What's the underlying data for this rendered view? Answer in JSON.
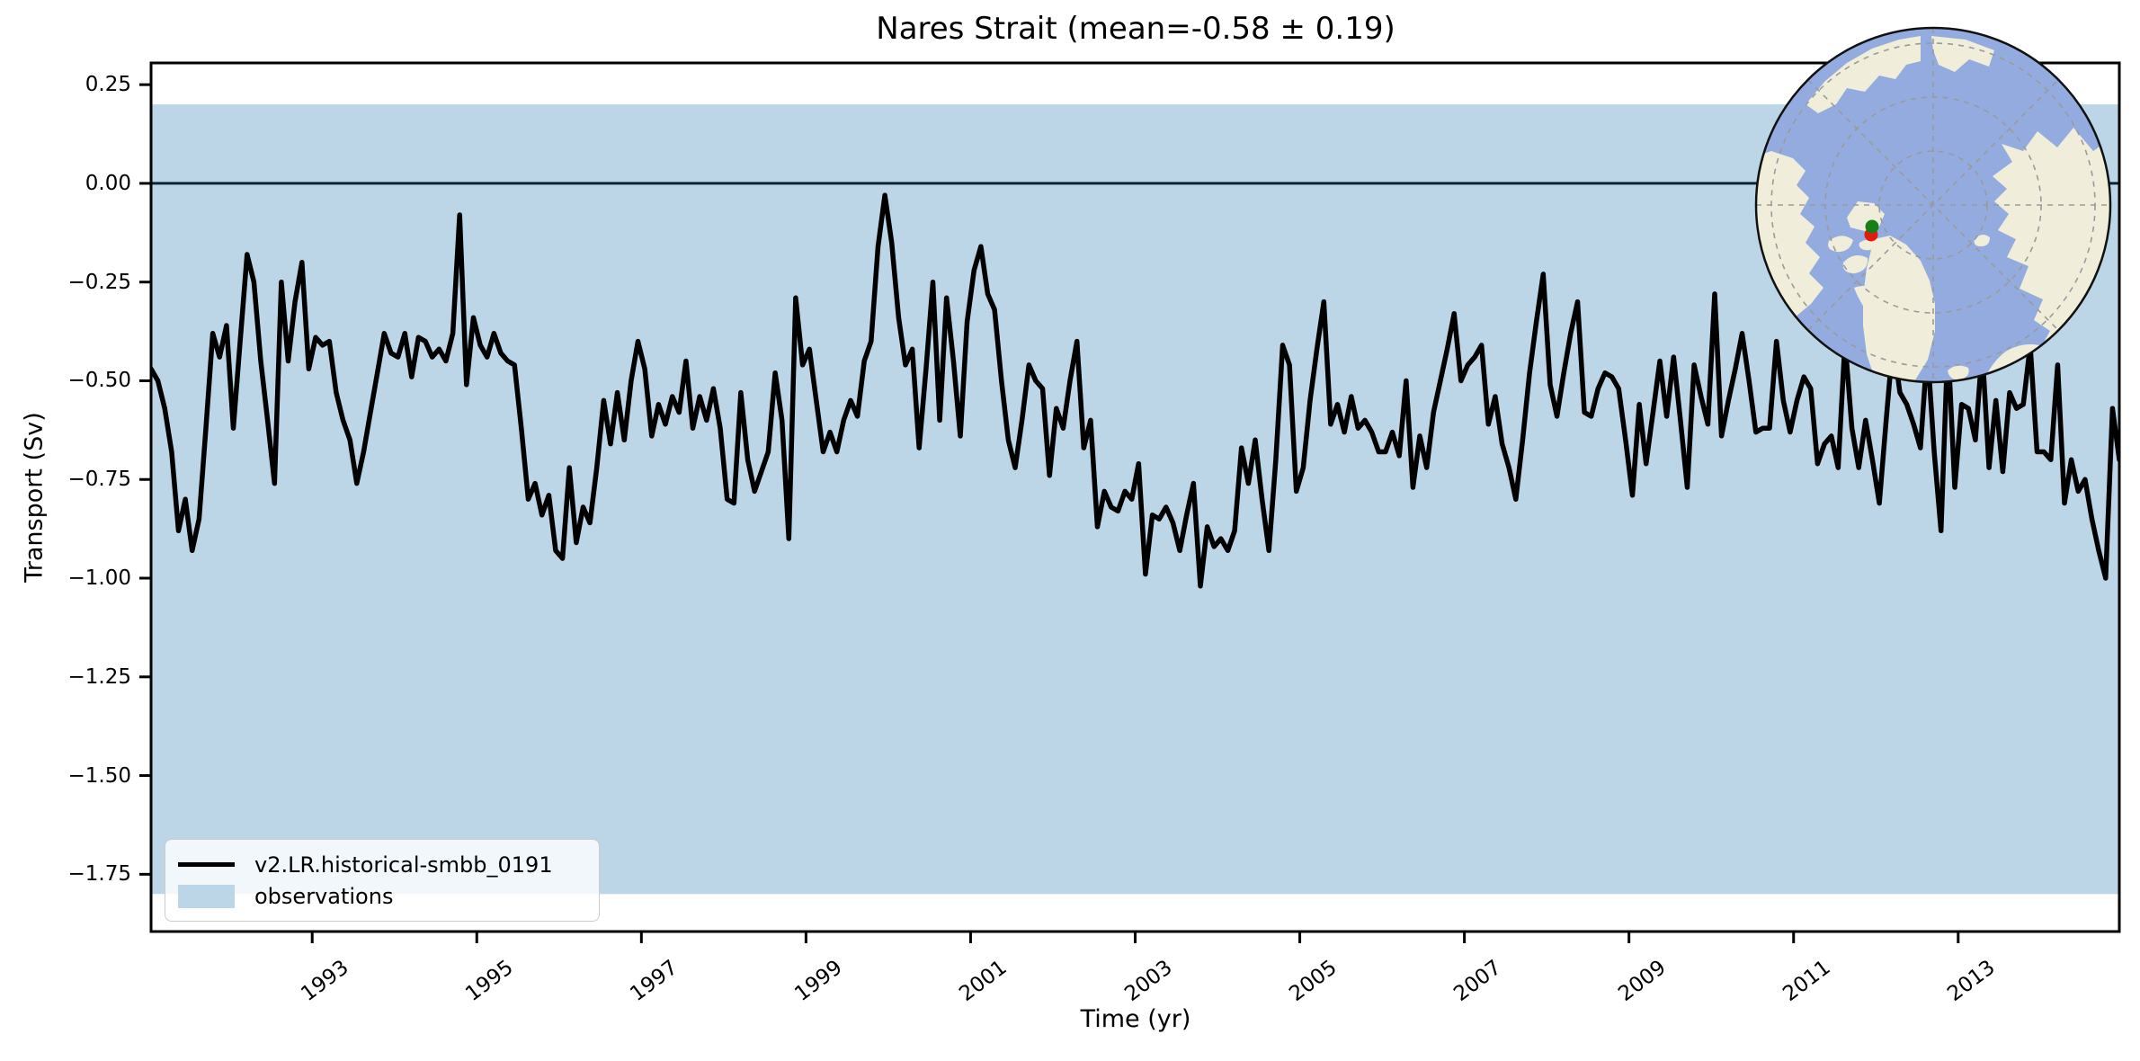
{
  "title": "Nares Strait (mean=-0.58 ± 0.19)",
  "stats": {
    "mean": -0.58,
    "std": 0.19
  },
  "axes": {
    "xlabel": "Time (yr)",
    "ylabel": "Transport (Sv)",
    "xticks": [
      {
        "value": 1993,
        "label": "1993"
      },
      {
        "value": 1995,
        "label": "1995"
      },
      {
        "value": 1997,
        "label": "1997"
      },
      {
        "value": 1999,
        "label": "1999"
      },
      {
        "value": 2001,
        "label": "2001"
      },
      {
        "value": 2003,
        "label": "2003"
      },
      {
        "value": 2005,
        "label": "2005"
      },
      {
        "value": 2007,
        "label": "2007"
      },
      {
        "value": 2009,
        "label": "2009"
      },
      {
        "value": 2011,
        "label": "2011"
      },
      {
        "value": 2013,
        "label": "2013"
      }
    ],
    "yticks": [
      {
        "value": 0.25,
        "label": "0.25"
      },
      {
        "value": 0.0,
        "label": "0.00"
      },
      {
        "value": -0.25,
        "label": "−0.25"
      },
      {
        "value": -0.5,
        "label": "−0.50"
      },
      {
        "value": -0.75,
        "label": "−0.75"
      },
      {
        "value": -1.0,
        "label": "−1.00"
      },
      {
        "value": -1.25,
        "label": "−1.25"
      },
      {
        "value": -1.5,
        "label": "−1.50"
      },
      {
        "value": -1.75,
        "label": "−1.75"
      }
    ]
  },
  "legend": {
    "entries": [
      {
        "label": "v2.LR.historical-smbb_0191",
        "swatch": "line"
      },
      {
        "label": "observations",
        "swatch": "patch"
      }
    ]
  },
  "colors": {
    "series_line": "#000000",
    "obs_band": "#bcd6e8",
    "zero_line": "#0d2233",
    "axes_frame": "#000000",
    "map_ocean": "#93abde",
    "map_land": "#f0eedb",
    "map_graticule": "#9a9a9a",
    "marker_red": "#e41a0c",
    "marker_green": "#168016"
  },
  "inset_map": {
    "projection": "north-polar-stereographic",
    "markers": [
      {
        "name": "strait-location-green",
        "color_key": "marker_green"
      },
      {
        "name": "strait-location-red",
        "color_key": "marker_red"
      }
    ]
  },
  "chart_data": {
    "type": "line",
    "title": "Nares Strait (mean=-0.58 ± 0.19)",
    "xlabel": "Time (yr)",
    "ylabel": "Transport (Sv)",
    "xlim": [
      1991.042,
      2014.958
    ],
    "ylim": [
      -1.895,
      0.305
    ],
    "grid": false,
    "zero_line": 0.0,
    "obs_band": {
      "low": -1.8,
      "high": 0.2,
      "label": "observations"
    },
    "xticks": [
      1993,
      1995,
      1997,
      1999,
      2001,
      2003,
      2005,
      2007,
      2009,
      2011,
      2013
    ],
    "yticks": [
      0.25,
      0.0,
      -0.25,
      -0.5,
      -0.75,
      -1.0,
      -1.25,
      -1.5,
      -1.75
    ],
    "legend_position": "lower left",
    "series": [
      {
        "name": "v2.LR.historical-smbb_0191",
        "color": "#000000",
        "cadence": "monthly",
        "x_start_year": 1991,
        "values": [
          -0.47,
          -0.5,
          -0.57,
          -0.68,
          -0.88,
          -0.8,
          -0.93,
          -0.85,
          -0.62,
          -0.38,
          -0.44,
          -0.36,
          -0.62,
          -0.4,
          -0.18,
          -0.25,
          -0.45,
          -0.6,
          -0.76,
          -0.25,
          -0.45,
          -0.3,
          -0.2,
          -0.47,
          -0.39,
          -0.41,
          -0.4,
          -0.53,
          -0.6,
          -0.65,
          -0.76,
          -0.68,
          -0.58,
          -0.48,
          -0.38,
          -0.43,
          -0.44,
          -0.38,
          -0.49,
          -0.39,
          -0.4,
          -0.44,
          -0.42,
          -0.45,
          -0.38,
          -0.08,
          -0.51,
          -0.34,
          -0.41,
          -0.44,
          -0.38,
          -0.43,
          -0.45,
          -0.46,
          -0.62,
          -0.8,
          -0.76,
          -0.84,
          -0.79,
          -0.93,
          -0.95,
          -0.72,
          -0.91,
          -0.82,
          -0.86,
          -0.72,
          -0.55,
          -0.66,
          -0.53,
          -0.65,
          -0.5,
          -0.4,
          -0.47,
          -0.64,
          -0.56,
          -0.61,
          -0.54,
          -0.58,
          -0.45,
          -0.62,
          -0.54,
          -0.6,
          -0.52,
          -0.62,
          -0.8,
          -0.81,
          -0.53,
          -0.7,
          -0.78,
          -0.73,
          -0.68,
          -0.48,
          -0.6,
          -0.9,
          -0.29,
          -0.46,
          -0.42,
          -0.55,
          -0.68,
          -0.63,
          -0.68,
          -0.6,
          -0.55,
          -0.59,
          -0.45,
          -0.4,
          -0.16,
          -0.03,
          -0.15,
          -0.34,
          -0.46,
          -0.42,
          -0.67,
          -0.47,
          -0.25,
          -0.6,
          -0.29,
          -0.45,
          -0.64,
          -0.35,
          -0.22,
          -0.16,
          -0.28,
          -0.32,
          -0.5,
          -0.65,
          -0.72,
          -0.6,
          -0.46,
          -0.5,
          -0.52,
          -0.74,
          -0.57,
          -0.62,
          -0.5,
          -0.4,
          -0.67,
          -0.6,
          -0.87,
          -0.78,
          -0.82,
          -0.83,
          -0.78,
          -0.8,
          -0.71,
          -0.99,
          -0.84,
          -0.85,
          -0.82,
          -0.86,
          -0.93,
          -0.84,
          -0.76,
          -1.02,
          -0.87,
          -0.92,
          -0.9,
          -0.93,
          -0.88,
          -0.67,
          -0.76,
          -0.65,
          -0.8,
          -0.93,
          -0.7,
          -0.41,
          -0.46,
          -0.78,
          -0.72,
          -0.55,
          -0.42,
          -0.3,
          -0.61,
          -0.56,
          -0.63,
          -0.54,
          -0.62,
          -0.6,
          -0.63,
          -0.68,
          -0.68,
          -0.63,
          -0.69,
          -0.5,
          -0.77,
          -0.64,
          -0.72,
          -0.58,
          -0.5,
          -0.42,
          -0.33,
          -0.5,
          -0.46,
          -0.44,
          -0.41,
          -0.61,
          -0.54,
          -0.66,
          -0.72,
          -0.8,
          -0.65,
          -0.48,
          -0.35,
          -0.23,
          -0.51,
          -0.59,
          -0.48,
          -0.38,
          -0.3,
          -0.58,
          -0.59,
          -0.52,
          -0.48,
          -0.49,
          -0.52,
          -0.65,
          -0.79,
          -0.56,
          -0.71,
          -0.58,
          -0.45,
          -0.59,
          -0.44,
          -0.6,
          -0.77,
          -0.46,
          -0.54,
          -0.61,
          -0.28,
          -0.64,
          -0.55,
          -0.47,
          -0.38,
          -0.5,
          -0.63,
          -0.62,
          -0.62,
          -0.4,
          -0.55,
          -0.63,
          -0.55,
          -0.49,
          -0.52,
          -0.71,
          -0.66,
          -0.64,
          -0.72,
          -0.4,
          -0.62,
          -0.72,
          -0.6,
          -0.7,
          -0.81,
          -0.6,
          -0.4,
          -0.53,
          -0.56,
          -0.61,
          -0.67,
          -0.42,
          -0.68,
          -0.88,
          -0.4,
          -0.77,
          -0.56,
          -0.57,
          -0.65,
          -0.42,
          -0.72,
          -0.55,
          -0.73,
          -0.53,
          -0.57,
          -0.56,
          -0.41,
          -0.68,
          -0.68,
          -0.7,
          -0.46,
          -0.81,
          -0.7,
          -0.78,
          -0.75,
          -0.85,
          -0.93,
          -1.0,
          -0.57,
          -0.7
        ]
      }
    ]
  }
}
